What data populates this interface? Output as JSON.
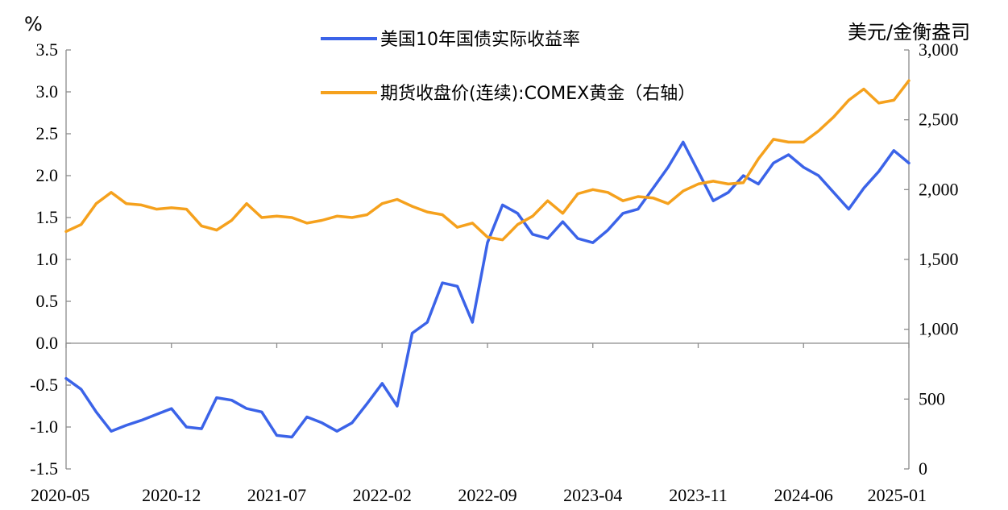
{
  "chart_data": {
    "type": "line",
    "y_left": {
      "unit_label": "%",
      "min": -1.5,
      "max": 3.5,
      "step": 0.5,
      "tick_labels": [
        "-1.5",
        "-1.0",
        "-0.5",
        "0.0",
        "0.5",
        "1.0",
        "1.5",
        "2.0",
        "2.5",
        "3.0",
        "3.5"
      ]
    },
    "y_right": {
      "unit_label": "美元/金衡盎司",
      "min": 0,
      "max": 3000,
      "step": 500,
      "tick_labels": [
        "0",
        "500",
        "1,000",
        "1,500",
        "2,000",
        "2,500",
        "3,000"
      ]
    },
    "x_axis": {
      "min": "2020-05",
      "max": "2025-01",
      "tick_labels": [
        "2020-05",
        "2020-12",
        "2021-07",
        "2022-02",
        "2022-09",
        "2023-04",
        "2023-11",
        "2024-06",
        "2025-01"
      ]
    },
    "legend_placement": "top-center",
    "grid": false,
    "series": [
      {
        "name": "美国10年国债实际收益率",
        "axis": "left",
        "color": "#3b63e8",
        "x": [
          "2020-05",
          "2020-06",
          "2020-07",
          "2020-08",
          "2020-09",
          "2020-10",
          "2020-11",
          "2020-12",
          "2021-01",
          "2021-02",
          "2021-03",
          "2021-04",
          "2021-05",
          "2021-06",
          "2021-07",
          "2021-08",
          "2021-09",
          "2021-10",
          "2021-11",
          "2021-12",
          "2022-01",
          "2022-02",
          "2022-03",
          "2022-04",
          "2022-05",
          "2022-06",
          "2022-07",
          "2022-08",
          "2022-09",
          "2022-10",
          "2022-11",
          "2022-12",
          "2023-01",
          "2023-02",
          "2023-03",
          "2023-04",
          "2023-05",
          "2023-06",
          "2023-07",
          "2023-08",
          "2023-09",
          "2023-10",
          "2023-11",
          "2023-12",
          "2024-01",
          "2024-02",
          "2024-03",
          "2024-04",
          "2024-05",
          "2024-06",
          "2024-07",
          "2024-08",
          "2024-09",
          "2024-10",
          "2024-11",
          "2024-12",
          "2025-01"
        ],
        "values": [
          -0.42,
          -0.55,
          -0.82,
          -1.05,
          -0.98,
          -0.92,
          -0.85,
          -0.78,
          -1.0,
          -1.02,
          -0.65,
          -0.68,
          -0.78,
          -0.82,
          -1.1,
          -1.12,
          -0.88,
          -0.95,
          -1.05,
          -0.95,
          -0.72,
          -0.48,
          -0.75,
          0.12,
          0.25,
          0.72,
          0.68,
          0.25,
          1.2,
          1.65,
          1.55,
          1.3,
          1.25,
          1.45,
          1.25,
          1.2,
          1.35,
          1.55,
          1.6,
          1.85,
          2.1,
          2.4,
          2.05,
          1.7,
          1.8,
          2.0,
          1.9,
          2.15,
          2.25,
          2.1,
          2.0,
          1.8,
          1.6,
          1.85,
          2.05,
          2.3,
          2.15
        ]
      },
      {
        "name": "期货收盘价(连续):COMEX黄金（右轴）",
        "axis": "right",
        "color": "#f5a11d",
        "x": [
          "2020-05",
          "2020-06",
          "2020-07",
          "2020-08",
          "2020-09",
          "2020-10",
          "2020-11",
          "2020-12",
          "2021-01",
          "2021-02",
          "2021-03",
          "2021-04",
          "2021-05",
          "2021-06",
          "2021-07",
          "2021-08",
          "2021-09",
          "2021-10",
          "2021-11",
          "2021-12",
          "2022-01",
          "2022-02",
          "2022-03",
          "2022-04",
          "2022-05",
          "2022-06",
          "2022-07",
          "2022-08",
          "2022-09",
          "2022-10",
          "2022-11",
          "2022-12",
          "2023-01",
          "2023-02",
          "2023-03",
          "2023-04",
          "2023-05",
          "2023-06",
          "2023-07",
          "2023-08",
          "2023-09",
          "2023-10",
          "2023-11",
          "2023-12",
          "2024-01",
          "2024-02",
          "2024-03",
          "2024-04",
          "2024-05",
          "2024-06",
          "2024-07",
          "2024-08",
          "2024-09",
          "2024-10",
          "2024-11",
          "2024-12",
          "2025-01"
        ],
        "values": [
          1700,
          1750,
          1900,
          1980,
          1900,
          1890,
          1860,
          1870,
          1860,
          1740,
          1710,
          1780,
          1900,
          1800,
          1810,
          1800,
          1760,
          1780,
          1810,
          1800,
          1820,
          1900,
          1930,
          1880,
          1840,
          1820,
          1730,
          1760,
          1660,
          1640,
          1750,
          1810,
          1920,
          1830,
          1970,
          2000,
          1980,
          1920,
          1950,
          1940,
          1900,
          1990,
          2040,
          2060,
          2040,
          2050,
          2220,
          2360,
          2340,
          2340,
          2420,
          2520,
          2640,
          2720,
          2620,
          2640,
          2780
        ]
      }
    ]
  }
}
